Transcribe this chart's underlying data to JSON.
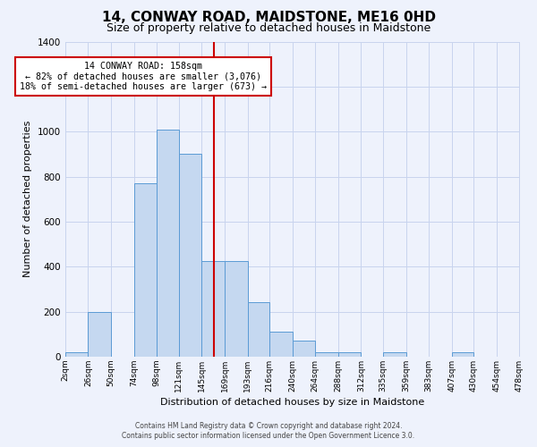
{
  "title": "14, CONWAY ROAD, MAIDSTONE, ME16 0HD",
  "subtitle": "Size of property relative to detached houses in Maidstone",
  "xlabel": "Distribution of detached houses by size in Maidstone",
  "ylabel": "Number of detached properties",
  "bin_edges": [
    2,
    26,
    50,
    74,
    98,
    121,
    145,
    169,
    193,
    216,
    240,
    264,
    288,
    312,
    335,
    359,
    383,
    407,
    430,
    454,
    478
  ],
  "bin_heights": [
    20,
    200,
    0,
    770,
    1010,
    900,
    425,
    425,
    240,
    110,
    70,
    20,
    20,
    0,
    20,
    0,
    0,
    20,
    0,
    0
  ],
  "bar_color": "#c5d8f0",
  "bar_edge_color": "#5b9bd5",
  "vline_x": 158,
  "vline_color": "#cc0000",
  "annotation_title": "14 CONWAY ROAD: 158sqm",
  "annotation_line1": "← 82% of detached houses are smaller (3,076)",
  "annotation_line2": "18% of semi-detached houses are larger (673) →",
  "annotation_box_color": "#cc0000",
  "ylim": [
    0,
    1400
  ],
  "yticks": [
    0,
    200,
    400,
    600,
    800,
    1000,
    1200,
    1400
  ],
  "xtick_labels": [
    "2sqm",
    "26sqm",
    "50sqm",
    "74sqm",
    "98sqm",
    "121sqm",
    "145sqm",
    "169sqm",
    "193sqm",
    "216sqm",
    "240sqm",
    "264sqm",
    "288sqm",
    "312sqm",
    "335sqm",
    "359sqm",
    "383sqm",
    "407sqm",
    "430sqm",
    "454sqm",
    "478sqm"
  ],
  "footer1": "Contains HM Land Registry data © Crown copyright and database right 2024.",
  "footer2": "Contains public sector information licensed under the Open Government Licence 3.0.",
  "background_color": "#eef2fc",
  "grid_color": "#c8d4ee",
  "title_fontsize": 11,
  "subtitle_fontsize": 9
}
